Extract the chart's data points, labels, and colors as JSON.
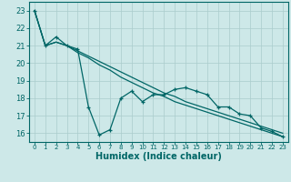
{
  "title": "",
  "xlabel": "Humidex (Indice chaleur)",
  "ylabel": "",
  "background_color": "#cde8e8",
  "grid_color": "#aacccc",
  "line_color": "#006666",
  "xlim": [
    -0.5,
    23.5
  ],
  "ylim": [
    15.5,
    23.5
  ],
  "yticks": [
    16,
    17,
    18,
    19,
    20,
    21,
    22,
    23
  ],
  "xticks": [
    0,
    1,
    2,
    3,
    4,
    5,
    6,
    7,
    8,
    9,
    10,
    11,
    12,
    13,
    14,
    15,
    16,
    17,
    18,
    19,
    20,
    21,
    22,
    23
  ],
  "series1_x": [
    0,
    1,
    2,
    3,
    4,
    5,
    6,
    7,
    8,
    9,
    10,
    11,
    12,
    13,
    14,
    15,
    16,
    17,
    18,
    19,
    20,
    21,
    22,
    23
  ],
  "series1_y": [
    23.0,
    21.0,
    21.5,
    21.0,
    20.8,
    17.5,
    15.9,
    16.2,
    18.0,
    18.4,
    17.8,
    18.2,
    18.2,
    18.5,
    18.6,
    18.4,
    18.2,
    17.5,
    17.5,
    17.1,
    17.0,
    16.3,
    16.1,
    15.8
  ],
  "series2_x": [
    0,
    1,
    2,
    3,
    4,
    5,
    6,
    7,
    8,
    9,
    10,
    11,
    12,
    13,
    14,
    15,
    16,
    17,
    18,
    19,
    20,
    21,
    22,
    23
  ],
  "series2_y": [
    23.0,
    21.0,
    21.2,
    21.0,
    20.7,
    20.4,
    20.1,
    19.8,
    19.5,
    19.2,
    18.9,
    18.6,
    18.3,
    18.1,
    17.8,
    17.6,
    17.4,
    17.2,
    17.0,
    16.8,
    16.6,
    16.4,
    16.2,
    16.0
  ],
  "series3_x": [
    0,
    1,
    2,
    3,
    4,
    5,
    6,
    7,
    8,
    9,
    10,
    11,
    12,
    13,
    14,
    15,
    16,
    17,
    18,
    19,
    20,
    21,
    22,
    23
  ],
  "series3_y": [
    23.0,
    21.0,
    21.2,
    21.0,
    20.6,
    20.3,
    19.9,
    19.6,
    19.2,
    18.9,
    18.6,
    18.3,
    18.1,
    17.8,
    17.6,
    17.4,
    17.2,
    17.0,
    16.8,
    16.6,
    16.4,
    16.2,
    16.0,
    15.8
  ]
}
